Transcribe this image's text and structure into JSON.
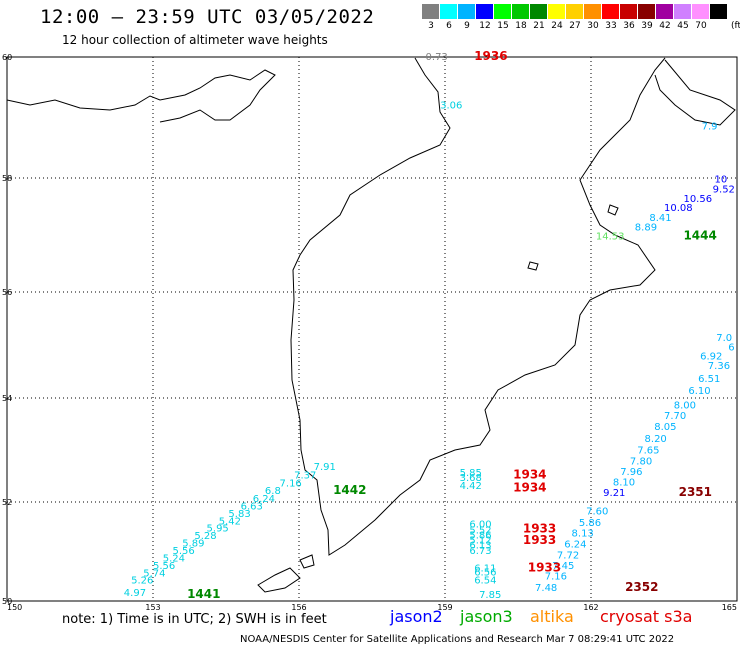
{
  "header": {
    "title": "12:00 – 23:59 UTC 03/05/2022",
    "subtitle": "12 hour collection of altimeter wave heights"
  },
  "legend": {
    "items": [
      {
        "label": "3",
        "color": "#808080"
      },
      {
        "label": "6",
        "color": "#00ffff"
      },
      {
        "label": "9",
        "color": "#00b4ff"
      },
      {
        "label": "12",
        "color": "#0000ff"
      },
      {
        "label": "15",
        "color": "#00ff00"
      },
      {
        "label": "18",
        "color": "#00c800"
      },
      {
        "label": "21",
        "color": "#008800"
      },
      {
        "label": "24",
        "color": "#ffff00"
      },
      {
        "label": "27",
        "color": "#ffd000"
      },
      {
        "label": "30",
        "color": "#ff9000"
      },
      {
        "label": "33",
        "color": "#ff0000"
      },
      {
        "label": "36",
        "color": "#c80000"
      },
      {
        "label": "39",
        "color": "#880000"
      },
      {
        "label": "42",
        "color": "#a000a0"
      },
      {
        "label": "45",
        "color": "#d080ff"
      },
      {
        "label": "70",
        "color": "#ff90ff"
      },
      {
        "label": "",
        "color": "#000000"
      }
    ],
    "unit": "(ft)"
  },
  "map": {
    "lat_labels": [
      "60",
      "58",
      "56",
      "54",
      "52",
      "50"
    ],
    "lon_labels": [
      "150",
      "153",
      "156",
      "159",
      "162",
      "165"
    ],
    "readings": [
      {
        "text": "0.73",
        "lon": 158.6,
        "lat": 59.95,
        "color": "#808080"
      },
      {
        "text": "3.06",
        "lon": 158.9,
        "lat": 59.15,
        "color": "#00d0e0"
      },
      {
        "text": "7.9",
        "lon": 164.6,
        "lat": 58.8,
        "color": "#00b4ff"
      },
      {
        "text": "10",
        "lon": 164.8,
        "lat": 57.92,
        "color": "#0000ff"
      },
      {
        "text": "9.52",
        "lon": 164.5,
        "lat": 57.75,
        "color": "#0000ff"
      },
      {
        "text": "10.56",
        "lon": 163.9,
        "lat": 57.58,
        "color": "#0000ff"
      },
      {
        "text": "10.08",
        "lon": 163.5,
        "lat": 57.42,
        "color": "#0000ff"
      },
      {
        "text": "8.41",
        "lon": 163.2,
        "lat": 57.25,
        "color": "#00b4ff"
      },
      {
        "text": "8.89",
        "lon": 162.9,
        "lat": 57.08,
        "color": "#00b4ff"
      },
      {
        "text": "14.53",
        "lon": 162.1,
        "lat": 56.92,
        "color": "#60e060"
      },
      {
        "text": "7.0",
        "lon": 164.9,
        "lat": 55.08,
        "color": "#00b4ff"
      },
      {
        "text": "6",
        "lon": 164.95,
        "lat": 54.9,
        "color": "#00b4ff"
      },
      {
        "text": "6.92",
        "lon": 164.7,
        "lat": 54.73,
        "color": "#00b4ff"
      },
      {
        "text": "7.36",
        "lon": 164.4,
        "lat": 54.55,
        "color": "#00b4ff"
      },
      {
        "text": "6.51",
        "lon": 164.2,
        "lat": 54.3,
        "color": "#00b4ff"
      },
      {
        "text": "6.10",
        "lon": 164.0,
        "lat": 54.08,
        "color": "#00b4ff"
      },
      {
        "text": "8.00",
        "lon": 163.7,
        "lat": 53.8,
        "color": "#00b4ff"
      },
      {
        "text": "7.70",
        "lon": 163.5,
        "lat": 53.6,
        "color": "#00b4ff"
      },
      {
        "text": "8.05",
        "lon": 163.3,
        "lat": 53.38,
        "color": "#00b4ff"
      },
      {
        "text": "8.20",
        "lon": 163.1,
        "lat": 53.15,
        "color": "#00b4ff"
      },
      {
        "text": "7.65",
        "lon": 162.95,
        "lat": 52.93,
        "color": "#00b4ff"
      },
      {
        "text": "7.80",
        "lon": 162.8,
        "lat": 52.72,
        "color": "#00b4ff"
      },
      {
        "text": "7.96",
        "lon": 162.6,
        "lat": 52.52,
        "color": "#00b4ff"
      },
      {
        "text": "8.10",
        "lon": 162.45,
        "lat": 52.32,
        "color": "#00b4ff"
      },
      {
        "text": "9.21",
        "lon": 162.25,
        "lat": 52.12,
        "color": "#0000ff"
      },
      {
        "text": "7.60",
        "lon": 161.9,
        "lat": 51.75,
        "color": "#00b4ff"
      },
      {
        "text": "5.86",
        "lon": 161.75,
        "lat": 51.52,
        "color": "#00b4ff"
      },
      {
        "text": "8.13",
        "lon": 161.6,
        "lat": 51.3,
        "color": "#00b4ff"
      },
      {
        "text": "6.24",
        "lon": 161.45,
        "lat": 51.08,
        "color": "#00b4ff"
      },
      {
        "text": "7.72",
        "lon": 161.3,
        "lat": 50.86,
        "color": "#00b4ff"
      },
      {
        "text": "7.45",
        "lon": 161.2,
        "lat": 50.65,
        "color": "#00b4ff"
      },
      {
        "text": "7.16",
        "lon": 161.05,
        "lat": 50.43,
        "color": "#00b4ff"
      },
      {
        "text": "7.48",
        "lon": 160.85,
        "lat": 50.2,
        "color": "#00b4ff"
      },
      {
        "text": "5.85",
        "lon": 159.3,
        "lat": 52.5,
        "color": "#00d0e0"
      },
      {
        "text": "3.68",
        "lon": 159.3,
        "lat": 52.4,
        "color": "#00d0e0"
      },
      {
        "text": "4.42",
        "lon": 159.3,
        "lat": 52.25,
        "color": "#00d0e0"
      },
      {
        "text": "6.00",
        "lon": 159.5,
        "lat": 51.48,
        "color": "#00d0e0"
      },
      {
        "text": "5.52",
        "lon": 159.5,
        "lat": 51.36,
        "color": "#00d0e0"
      },
      {
        "text": "5.86",
        "lon": 159.5,
        "lat": 51.26,
        "color": "#00d0e0"
      },
      {
        "text": "5.12",
        "lon": 159.5,
        "lat": 51.16,
        "color": "#00d0e0"
      },
      {
        "text": "6.13",
        "lon": 159.5,
        "lat": 51.06,
        "color": "#00d0e0"
      },
      {
        "text": "6.73",
        "lon": 159.5,
        "lat": 50.95,
        "color": "#00d0e0"
      },
      {
        "text": "6.11",
        "lon": 159.6,
        "lat": 50.6,
        "color": "#00d0e0"
      },
      {
        "text": "6.56",
        "lon": 159.6,
        "lat": 50.52,
        "color": "#00d0e0"
      },
      {
        "text": "6.54",
        "lon": 159.6,
        "lat": 50.35,
        "color": "#00d0e0"
      },
      {
        "text": "7.85",
        "lon": 159.7,
        "lat": 50.06,
        "color": "#00d0e0"
      },
      {
        "text": "7.91",
        "lon": 156.3,
        "lat": 52.62,
        "color": "#00d0e0"
      },
      {
        "text": "7.37",
        "lon": 155.9,
        "lat": 52.45,
        "color": "#00d0e0"
      },
      {
        "text": "7.16",
        "lon": 155.6,
        "lat": 52.3,
        "color": "#00d0e0"
      },
      {
        "text": "6.8",
        "lon": 155.3,
        "lat": 52.15,
        "color": "#00d0e0"
      },
      {
        "text": "6.24",
        "lon": 155.05,
        "lat": 52.0,
        "color": "#00d0e0"
      },
      {
        "text": "6.63",
        "lon": 154.8,
        "lat": 51.85,
        "color": "#00d0e0"
      },
      {
        "text": "5.83",
        "lon": 154.55,
        "lat": 51.7,
        "color": "#00d0e0"
      },
      {
        "text": "5.42",
        "lon": 154.35,
        "lat": 51.55,
        "color": "#00d0e0"
      },
      {
        "text": "5.95",
        "lon": 154.1,
        "lat": 51.4,
        "color": "#00d0e0"
      },
      {
        "text": "5.28",
        "lon": 153.85,
        "lat": 51.25,
        "color": "#00d0e0"
      },
      {
        "text": "5.89",
        "lon": 153.6,
        "lat": 51.1,
        "color": "#00d0e0"
      },
      {
        "text": "5.56",
        "lon": 153.4,
        "lat": 50.95,
        "color": "#00d0e0"
      },
      {
        "text": "5.24",
        "lon": 153.2,
        "lat": 50.8,
        "color": "#00d0e0"
      },
      {
        "text": "5.56",
        "lon": 153.0,
        "lat": 50.65,
        "color": "#00d0e0"
      },
      {
        "text": "5.74",
        "lon": 152.8,
        "lat": 50.5,
        "color": "#00d0e0"
      },
      {
        "text": "5.26",
        "lon": 152.55,
        "lat": 50.35,
        "color": "#00d0e0"
      },
      {
        "text": "4.97",
        "lon": 152.4,
        "lat": 50.1,
        "color": "#00d0e0"
      }
    ],
    "passes": [
      {
        "text": "1936",
        "lon": 159.6,
        "lat": 59.95,
        "color": "#e00000"
      },
      {
        "text": "1444",
        "lon": 163.9,
        "lat": 56.92,
        "color": "#008800"
      },
      {
        "text": "1934",
        "lon": 160.4,
        "lat": 52.45,
        "color": "#e00000"
      },
      {
        "text": "1934",
        "lon": 160.4,
        "lat": 52.2,
        "color": "#e00000"
      },
      {
        "text": "2351",
        "lon": 163.8,
        "lat": 52.12,
        "color": "#880000"
      },
      {
        "text": "1442",
        "lon": 156.7,
        "lat": 52.15,
        "color": "#008800"
      },
      {
        "text": "1933",
        "lon": 160.6,
        "lat": 51.38,
        "color": "#e00000"
      },
      {
        "text": "1933",
        "lon": 160.6,
        "lat": 51.15,
        "color": "#e00000"
      },
      {
        "text": "1933",
        "lon": 160.7,
        "lat": 50.6,
        "color": "#e00000"
      },
      {
        "text": "2352",
        "lon": 162.7,
        "lat": 50.2,
        "color": "#880000"
      },
      {
        "text": "1441",
        "lon": 153.7,
        "lat": 50.06,
        "color": "#008800"
      }
    ]
  },
  "footer": {
    "note": "note: 1) Time is in UTC; 2) SWH is in feet",
    "satellites": [
      {
        "name": "jason2",
        "color": "#0000ff"
      },
      {
        "name": "jason3",
        "color": "#00aa00"
      },
      {
        "name": "altika",
        "color": "#ff9000"
      },
      {
        "name": "cryosat s3a",
        "color": "#e00000"
      }
    ],
    "credit": "NOAA/NESDIS Center for Satellite Applications and Research   Mar  7 08:29:41 UTC 2022"
  }
}
